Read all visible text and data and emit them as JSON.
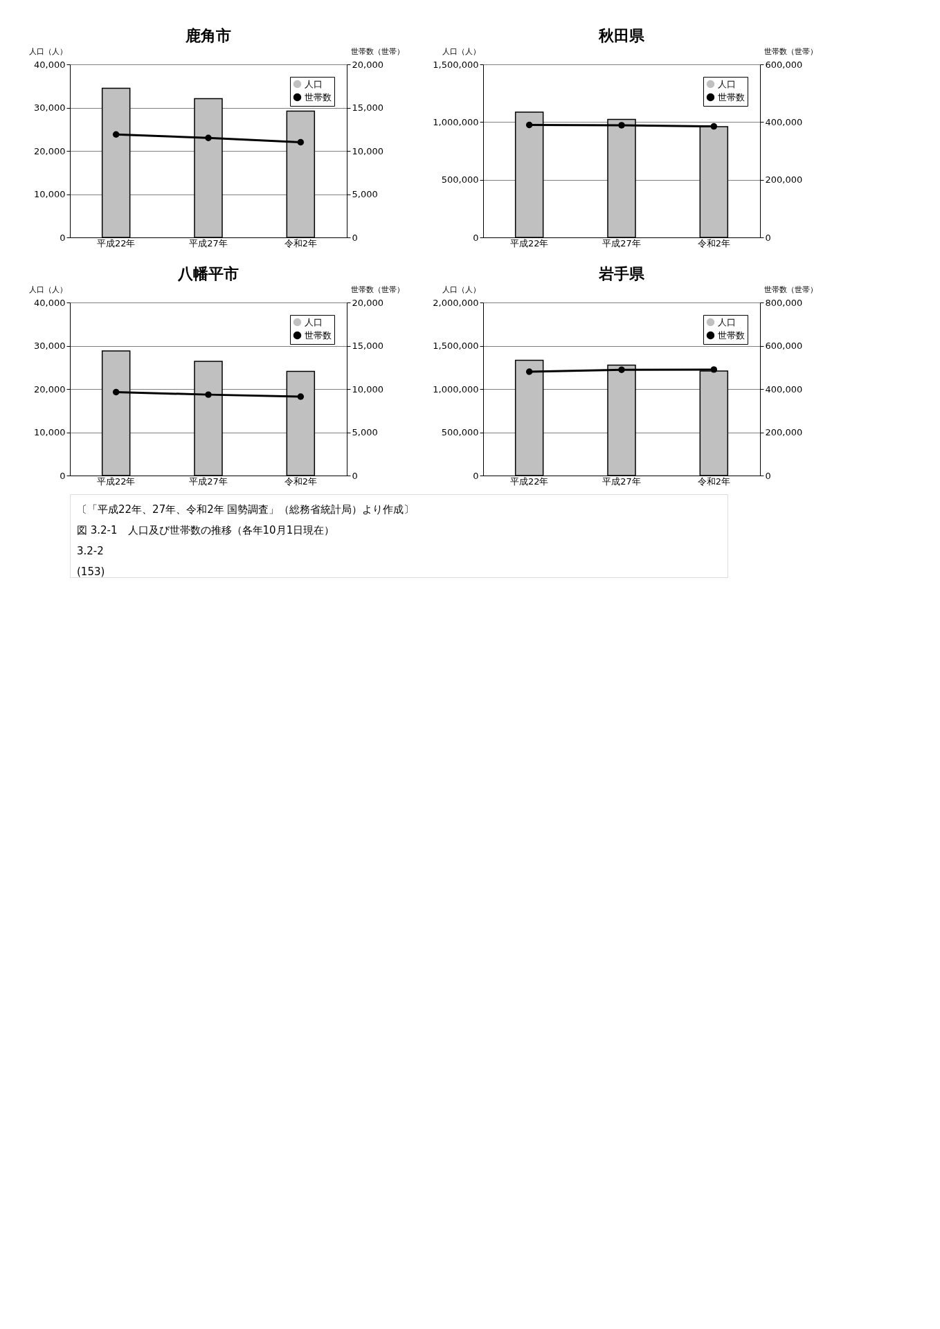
{
  "chart_data": [
    {
      "type": "bar",
      "title": "鹿角市",
      "ylabel": "人口（人）",
      "y2label": "世帯数（世帯）",
      "categories": [
        "平成22年",
        "平成27年",
        "令和2年"
      ],
      "series": [
        {
          "name": "人口",
          "color": "#c0c0c0",
          "values": [
            34500,
            32100,
            29200
          ]
        },
        {
          "name": "世帯数",
          "type": "line",
          "axis": "y2",
          "color": "#000000",
          "marker": "circle",
          "values": [
            11900,
            11500,
            11000
          ]
        }
      ],
      "ylim": [
        0,
        40000
      ],
      "yticks": [
        {
          "value": 0,
          "label": "0"
        },
        {
          "value": 10000,
          "label": "10,000"
        },
        {
          "value": 20000,
          "label": "20,000"
        },
        {
          "value": 30000,
          "label": "30,000"
        },
        {
          "value": 40000,
          "label": "40,000"
        }
      ],
      "y2lim": [
        0,
        20000
      ],
      "y2ticks": [
        {
          "value": 0,
          "label": "0"
        },
        {
          "value": 5000,
          "label": "5,000"
        },
        {
          "value": 10000,
          "label": "10,000"
        },
        {
          "value": 15000,
          "label": "15,000"
        },
        {
          "value": 20000,
          "label": "20,000"
        }
      ],
      "grid": "y",
      "legend": "top right"
    },
    {
      "type": "bar",
      "title": "秋田県",
      "ylabel": "人口（人）",
      "y2label": "世帯数（世帯）",
      "categories": [
        "平成22年",
        "平成27年",
        "令和2年"
      ],
      "series": [
        {
          "name": "人口",
          "color": "#c0c0c0",
          "values": [
            1086000,
            1023000,
            960000
          ]
        },
        {
          "name": "世帯数",
          "type": "line",
          "axis": "y2",
          "color": "#000000",
          "marker": "circle",
          "values": [
            390000,
            389000,
            385000
          ]
        }
      ],
      "ylim": [
        0,
        1500000
      ],
      "yticks": [
        {
          "value": 0,
          "label": "0"
        },
        {
          "value": 500000,
          "label": "500,000"
        },
        {
          "value": 1000000,
          "label": "1,000,000"
        },
        {
          "value": 1500000,
          "label": "1,500,000"
        }
      ],
      "y2lim": [
        0,
        600000
      ],
      "y2ticks": [
        {
          "value": 0,
          "label": "0"
        },
        {
          "value": 200000,
          "label": "200,000"
        },
        {
          "value": 400000,
          "label": "400,000"
        },
        {
          "value": 600000,
          "label": "600,000"
        }
      ],
      "grid": "y",
      "legend": "top right"
    },
    {
      "type": "bar",
      "title": "八幡平市",
      "ylabel": "人口（人）",
      "y2label": "世帯数（世帯）",
      "categories": [
        "平成22年",
        "平成27年",
        "令和2年"
      ],
      "series": [
        {
          "name": "人口",
          "color": "#c0c0c0",
          "values": [
            28800,
            26400,
            24100
          ]
        },
        {
          "name": "世帯数",
          "type": "line",
          "axis": "y2",
          "color": "#000000",
          "marker": "circle",
          "values": [
            9640,
            9350,
            9120
          ]
        }
      ],
      "ylim": [
        0,
        40000
      ],
      "yticks": [
        {
          "value": 0,
          "label": "0"
        },
        {
          "value": 10000,
          "label": "10,000"
        },
        {
          "value": 20000,
          "label": "20,000"
        },
        {
          "value": 30000,
          "label": "30,000"
        },
        {
          "value": 40000,
          "label": "40,000"
        }
      ],
      "y2lim": [
        0,
        20000
      ],
      "y2ticks": [
        {
          "value": 0,
          "label": "0"
        },
        {
          "value": 5000,
          "label": "5,000"
        },
        {
          "value": 10000,
          "label": "10,000"
        },
        {
          "value": 15000,
          "label": "15,000"
        },
        {
          "value": 20000,
          "label": "20,000"
        }
      ],
      "grid": "y",
      "legend": "top right"
    },
    {
      "type": "bar",
      "title": "岩手県",
      "ylabel": "人口（人）",
      "y2label": "世帯数（世帯）",
      "categories": [
        "平成22年",
        "平成27年",
        "令和2年"
      ],
      "series": [
        {
          "name": "人口",
          "color": "#c0c0c0",
          "values": [
            1333000,
            1277000,
            1208000
          ]
        },
        {
          "name": "世帯数",
          "type": "line",
          "axis": "y2",
          "color": "#000000",
          "marker": "circle",
          "values": [
            480000,
            489000,
            490000
          ]
        }
      ],
      "ylim": [
        0,
        2000000
      ],
      "yticks": [
        {
          "value": 0,
          "label": "0"
        },
        {
          "value": 500000,
          "label": "500,000"
        },
        {
          "value": 1000000,
          "label": "1,000,000"
        },
        {
          "value": 1500000,
          "label": "1,500,000"
        },
        {
          "value": 2000000,
          "label": "2,000,000"
        }
      ],
      "y2lim": [
        0,
        800000
      ],
      "y2ticks": [
        {
          "value": 0,
          "label": "0"
        },
        {
          "value": 200000,
          "label": "200,000"
        },
        {
          "value": 400000,
          "label": "400,000"
        },
        {
          "value": 600000,
          "label": "600,000"
        },
        {
          "value": 800000,
          "label": "800,000"
        }
      ],
      "grid": "y",
      "legend": "top right",
      "annotations": [
        "〔「平成22年、27年、令和2年 国勢調査」（総務省統計局）より作成〕",
        "図 3.2-1　人口及び世帯数の推移（各年10月1日現在）",
        "3.2-2",
        "(153)"
      ]
    }
  ]
}
